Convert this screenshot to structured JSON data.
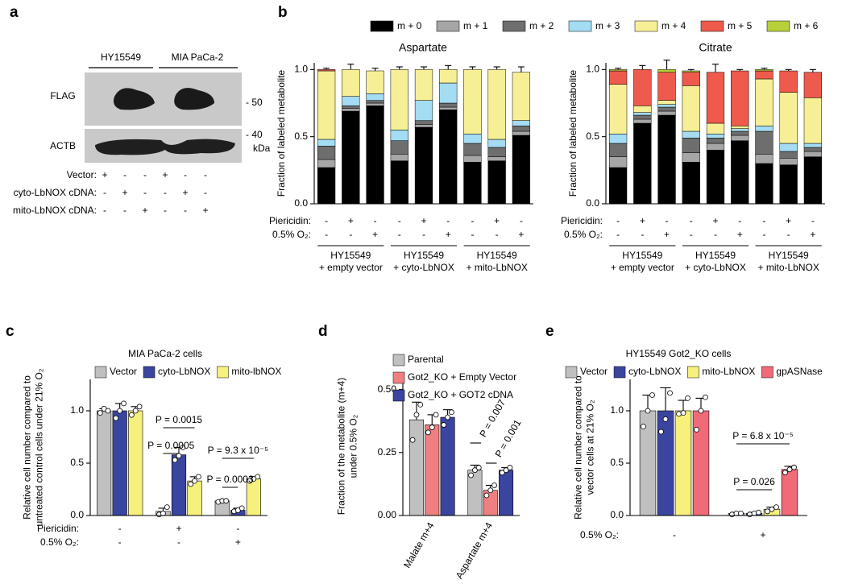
{
  "blot": {
    "panel": "a",
    "cell_lines": [
      "HY15549",
      "MIA PaCa-2"
    ],
    "bands": [
      "FLAG",
      "ACTB"
    ],
    "markers": [
      "- 50",
      "- 40"
    ],
    "marker_unit": "kDa",
    "rows": [
      {
        "label": "Vector:",
        "signs": [
          "+",
          "-",
          "-",
          "+",
          "-",
          "-"
        ]
      },
      {
        "label": "cyto-LbNOX cDNA:",
        "signs": [
          "-",
          "+",
          "-",
          "-",
          "+",
          "-"
        ]
      },
      {
        "label": "mito-LbNOX cDNA:",
        "signs": [
          "-",
          "-",
          "+",
          "-",
          "-",
          "+"
        ]
      }
    ]
  },
  "chart_data": [
    {
      "type": "stacked_bar",
      "panel": "b",
      "title": "Aspartate",
      "y_label": "Fraction of labeled metabolite",
      "ylim": [
        0,
        1.05
      ],
      "yticks": [
        {
          "value": 0,
          "label": "0.0"
        },
        {
          "value": 0.5,
          "label": "0.5"
        },
        {
          "value": 1,
          "label": "1.0"
        }
      ],
      "conditions": [
        {
          "label": "Piericidin:",
          "values": [
            "-",
            "+",
            "-",
            "-",
            "+",
            "-",
            "-",
            "+",
            "-"
          ]
        },
        {
          "label": "0.5% O₂:",
          "values": [
            "-",
            "-",
            "+",
            "-",
            "-",
            "+",
            "-",
            "-",
            "+"
          ]
        }
      ],
      "groups": [
        [
          "HY15549",
          "+ empty vector"
        ],
        [
          "HY15549",
          "+ cyto-LbNOX"
        ],
        [
          "HY15549",
          "+ mito-LbNOX"
        ]
      ],
      "series": [
        {
          "name": "m + 0",
          "color": "#000000",
          "values": [
            0.27,
            0.69,
            0.73,
            0.32,
            0.57,
            0.7,
            0.31,
            0.32,
            0.51
          ]
        },
        {
          "name": "m + 1",
          "color": "#a6a6a6",
          "values": [
            0.06,
            0.02,
            0.02,
            0.05,
            0.02,
            0.02,
            0.05,
            0.03,
            0.03
          ]
        },
        {
          "name": "m + 2",
          "color": "#6e6e6e",
          "values": [
            0.1,
            0.02,
            0.02,
            0.1,
            0.03,
            0.03,
            0.09,
            0.07,
            0.04
          ]
        },
        {
          "name": "m + 3",
          "color": "#a3dcf3",
          "values": [
            0.05,
            0.07,
            0.05,
            0.08,
            0.15,
            0.15,
            0.07,
            0.06,
            0.04
          ]
        },
        {
          "name": "m + 4",
          "color": "#f7ef96",
          "values": [
            0.51,
            0.2,
            0.17,
            0.45,
            0.23,
            0.1,
            0.48,
            0.52,
            0.36
          ]
        },
        {
          "name": "m + 5",
          "color": "#ee5a4b",
          "values": [
            0.01,
            0,
            0,
            0,
            0,
            0,
            0,
            0,
            0
          ]
        },
        {
          "name": "m + 6",
          "color": "#b7d03a",
          "values": [
            0,
            0,
            0,
            0,
            0,
            0,
            0,
            0,
            0
          ],
          "errors": [
            0.01,
            0.04,
            0.02,
            0.02,
            0.02,
            0.03,
            0.02,
            0.02,
            0.04
          ]
        }
      ]
    },
    {
      "type": "stacked_bar",
      "title": "Citrate",
      "y_label": "Fraction of labeled metabolite",
      "ylim": [
        0,
        1.05
      ],
      "yticks": [
        {
          "value": 0,
          "label": "0.0"
        },
        {
          "value": 0.5,
          "label": "0.5"
        },
        {
          "value": 1,
          "label": "1.0"
        }
      ],
      "conditions": [
        {
          "label": "Piericidin:",
          "values": [
            "-",
            "+",
            "-",
            "-",
            "+",
            "-",
            "-",
            "+",
            "-"
          ]
        },
        {
          "label": "0.5% O₂:",
          "values": [
            "-",
            "-",
            "+",
            "-",
            "-",
            "+",
            "-",
            "-",
            "+"
          ]
        }
      ],
      "groups": [
        [
          "HY15549",
          "+ empty vector"
        ],
        [
          "HY15549",
          "+ cyto-LbNOX"
        ],
        [
          "HY15549",
          "+ mito-LbNOX"
        ]
      ],
      "series": [
        {
          "color": "#000000",
          "values": [
            0.27,
            0.6,
            0.66,
            0.31,
            0.4,
            0.47,
            0.3,
            0.29,
            0.35
          ]
        },
        {
          "color": "#a6a6a6",
          "values": [
            0.08,
            0.03,
            0.03,
            0.07,
            0.05,
            0.04,
            0.07,
            0.05,
            0.04
          ]
        },
        {
          "color": "#6e6e6e",
          "values": [
            0.1,
            0.03,
            0.03,
            0.11,
            0.04,
            0.03,
            0.17,
            0.05,
            0.03
          ]
        },
        {
          "color": "#a3dcf3",
          "values": [
            0.07,
            0.02,
            0.02,
            0.05,
            0.03,
            0.02,
            0.04,
            0.06,
            0.03
          ]
        },
        {
          "color": "#f7ef96",
          "values": [
            0.37,
            0.05,
            0.03,
            0.34,
            0.08,
            0.02,
            0.35,
            0.38,
            0.34
          ]
        },
        {
          "color": "#ee5a4b",
          "values": [
            0.1,
            0.27,
            0.21,
            0.1,
            0.38,
            0.41,
            0.06,
            0.16,
            0.19
          ]
        },
        {
          "color": "#b7d03a",
          "values": [
            0.01,
            0,
            0.02,
            0.01,
            0,
            0,
            0.01,
            0,
            0
          ],
          "errors": [
            0.01,
            0.03,
            0.07,
            0.01,
            0.06,
            0.01,
            0.01,
            0.01,
            0.02
          ]
        }
      ]
    },
    {
      "type": "bar",
      "panel": "c",
      "title": "MIA PaCa-2 cells",
      "y_label": [
        "Relative cell number compared to",
        "untreated control cells under 21% O₂"
      ],
      "ylim": [
        0,
        1.3
      ],
      "yticks": [
        {
          "value": 0,
          "label": "0.0"
        },
        {
          "value": 0.5,
          "label": "0.5"
        },
        {
          "value": 1,
          "label": "1.0"
        }
      ],
      "conditions": [
        {
          "label": "Piericidin:",
          "values": [
            "-",
            "+",
            "-"
          ]
        },
        {
          "label": "0.5% O₂:",
          "values": [
            "-",
            "-",
            "+"
          ]
        }
      ],
      "annotations": [
        "P = 0.0015",
        "P = 0.0005",
        "P = 9.3 x 10⁻⁵",
        "P = 0.0003"
      ],
      "series": [
        {
          "name": "Vector",
          "color": "#c0c0c0",
          "values": [
            1.0,
            0.04,
            0.14
          ],
          "errors": [
            0.02,
            0.03,
            0.01
          ],
          "points": [
            [
              0.98,
              1.02,
              1.0
            ],
            [
              0.01,
              0.02,
              0.08
            ],
            [
              0.13,
              0.14,
              0.14
            ]
          ]
        },
        {
          "name": "cyto-LbNOX",
          "color": "#3a45a0",
          "values": [
            1.0,
            0.58,
            0.05
          ],
          "errors": [
            0.07,
            0.07,
            0.02
          ],
          "points": [
            [
              0.93,
              1.0,
              1.07
            ],
            [
              0.53,
              0.57,
              0.65
            ],
            [
              0.04,
              0.05,
              0.07
            ]
          ]
        },
        {
          "name": "mito-lbNOX",
          "color": "#f6f07c",
          "values": [
            1.0,
            0.33,
            0.35
          ],
          "errors": [
            0.04,
            0.04,
            0.02
          ],
          "points": [
            [
              0.96,
              1.0,
              1.04
            ],
            [
              0.3,
              0.33,
              0.37
            ],
            [
              0.33,
              0.35,
              0.37
            ]
          ]
        }
      ]
    },
    {
      "type": "bar",
      "panel": "d",
      "y_label": [
        "Fraction of the metabolite (m+4)",
        "under 0.5% O₂"
      ],
      "categories": [
        "Malate m+4",
        "Aspartate m+4"
      ],
      "ylim": [
        0,
        0.55
      ],
      "yticks": [
        {
          "value": 0,
          "label": "0.00"
        },
        {
          "value": 0.25,
          "label": "0.25"
        },
        {
          "value": 0.5,
          "label": "0.50"
        }
      ],
      "annotations": [
        "P = 0.007",
        "P = 0.001"
      ],
      "series": [
        {
          "name": "Parental",
          "color": "#c0c0c0",
          "values": [
            0.38,
            0.18
          ],
          "errors": [
            0.07,
            0.02
          ],
          "points": [
            [
              0.3,
              0.4,
              0.44
            ],
            [
              0.16,
              0.18,
              0.19
            ]
          ]
        },
        {
          "name": "Got2_KO + Empty Vector",
          "color": "#f08080",
          "values": [
            0.36,
            0.1
          ],
          "errors": [
            0.04,
            0.02
          ],
          "points": [
            [
              0.33,
              0.35,
              0.4
            ],
            [
              0.08,
              0.1,
              0.12
            ]
          ]
        },
        {
          "name": "Got2_KO + GOT2 cDNA",
          "color": "#3a45a0",
          "values": [
            0.39,
            0.18
          ],
          "errors": [
            0.03,
            0.01
          ],
          "points": [
            [
              0.36,
              0.39,
              0.41
            ],
            [
              0.17,
              0.18,
              0.19
            ]
          ]
        }
      ]
    },
    {
      "type": "bar",
      "panel": "e",
      "title": "HY15549 Got2_KO cells",
      "y_label": [
        "Relative cell number compared to",
        "vector cells at 21% O₂"
      ],
      "ylim": [
        0,
        1.3
      ],
      "yticks": [
        {
          "value": 0,
          "label": "0.0"
        },
        {
          "value": 0.5,
          "label": "0.5"
        },
        {
          "value": 1,
          "label": "1.0"
        }
      ],
      "conditions": [
        {
          "label": "0.5% O₂:",
          "values": [
            "-",
            "+"
          ]
        }
      ],
      "annotations": [
        "P = 0.026",
        "P = 6.8 x 10⁻⁵"
      ],
      "series": [
        {
          "name": "Vector",
          "color": "#c0c0c0",
          "values": [
            1.0,
            0.02
          ],
          "errors": [
            0.15,
            0.01
          ],
          "points": [
            [
              0.85,
              1.0,
              1.15
            ],
            [
              0.01,
              0.02,
              0.02
            ]
          ]
        },
        {
          "name": "cyto-LbNOX",
          "color": "#3a45a0",
          "values": [
            1.0,
            0.02
          ],
          "errors": [
            0.22,
            0.01
          ],
          "points": [
            [
              0.8,
              0.92,
              1.17
            ],
            [
              0.01,
              0.02,
              0.03
            ]
          ]
        },
        {
          "name": "mito-LbNOX",
          "color": "#f6f07c",
          "values": [
            1.0,
            0.06
          ],
          "errors": [
            0.1,
            0.02
          ],
          "points": [
            [
              0.97,
              0.98,
              1.12
            ],
            [
              0.04,
              0.06,
              0.08
            ]
          ]
        },
        {
          "name": "gpASNase",
          "color": "#f06a78",
          "values": [
            1.0,
            0.44
          ],
          "errors": [
            0.12,
            0.03
          ],
          "points": [
            [
              0.82,
              1.0,
              1.13
            ],
            [
              0.41,
              0.44,
              0.46
            ]
          ]
        }
      ]
    }
  ]
}
